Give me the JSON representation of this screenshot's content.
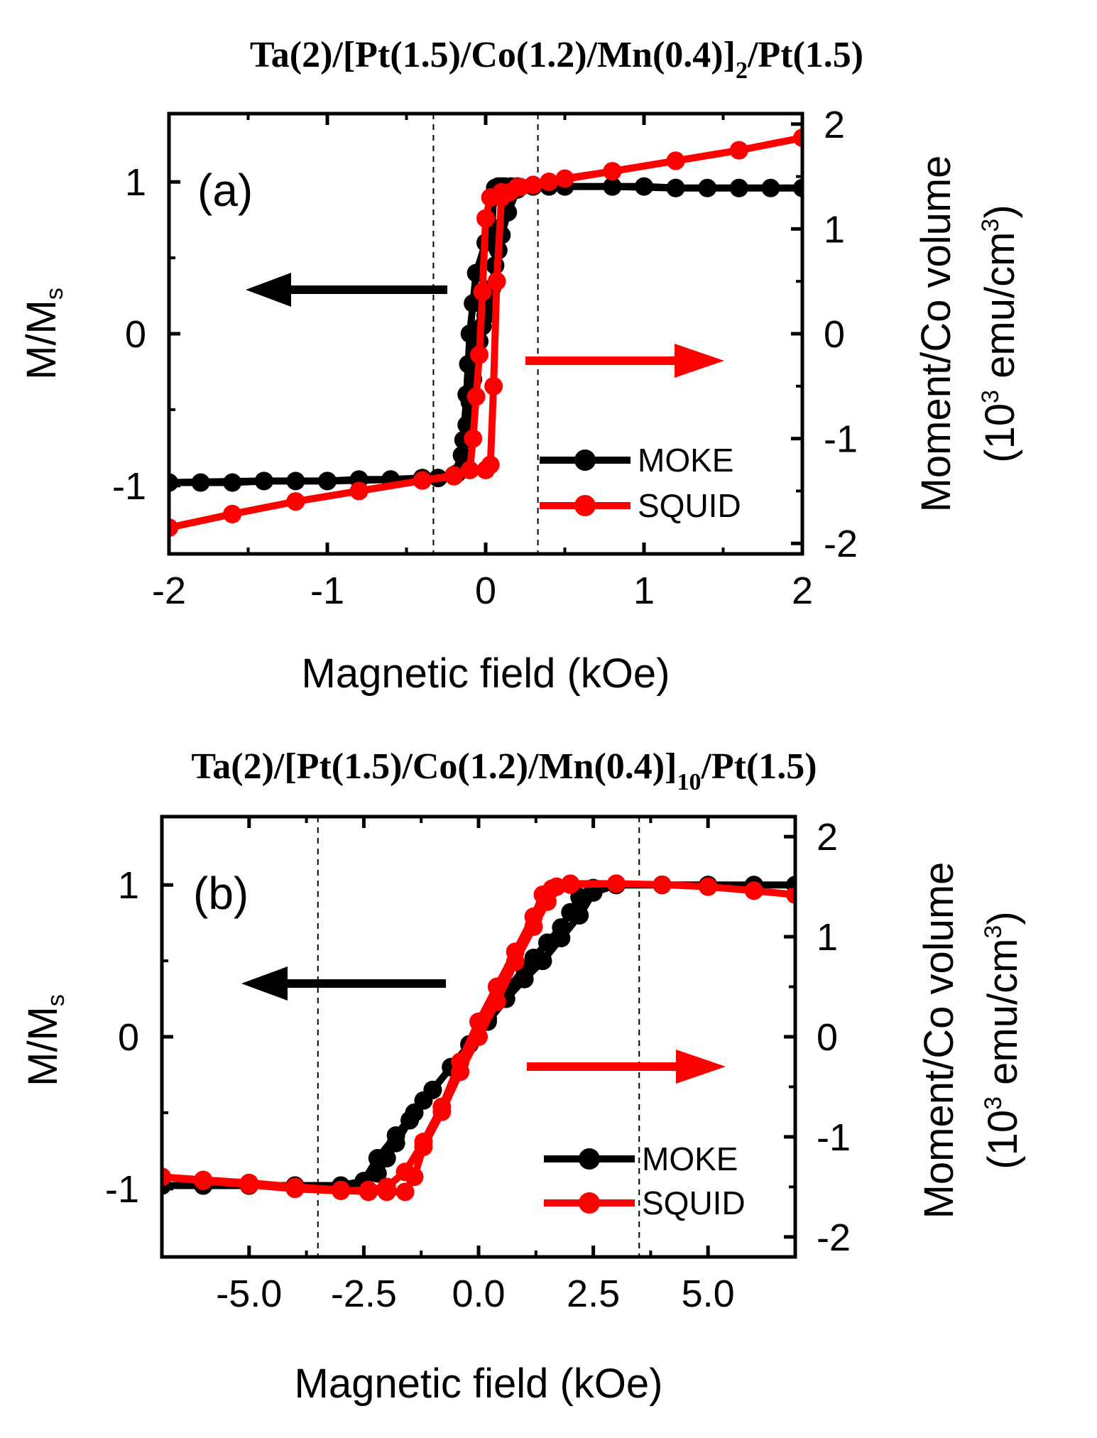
{
  "chart_data": [
    {
      "panel": "(a)",
      "type": "line",
      "title": {
        "main": "Ta(2)/[Pt(1.5)/Co(1.2)/Mn(0.4)]",
        "subscript": "2",
        "suffix": "/Pt(1.5)"
      },
      "xlabel": "Magnetic field (kOe)",
      "ylabel": {
        "main": "M/M",
        "sub": "s"
      },
      "y2label": {
        "line1": "Moment/Co volume",
        "line2_pre": "(10",
        "line2_sup1": "3",
        "line2_mid": " emu/cm",
        "line2_sup2": "3",
        "line2_post": ")"
      },
      "xlim": [
        -2,
        2
      ],
      "ylim": [
        -1.45,
        1.45
      ],
      "y2lim": [
        -2.1,
        2.1
      ],
      "xticks": [
        -2,
        -1,
        0,
        1,
        2
      ],
      "xtick_labels": [
        "-2",
        "-1",
        "0",
        "1",
        "2"
      ],
      "yticks": [
        -1,
        0,
        1
      ],
      "ytick_labels": [
        "-1",
        "0",
        "1"
      ],
      "y2ticks": [
        -2,
        -1,
        0,
        1,
        2
      ],
      "y2tick_labels": [
        "-2",
        "-1",
        "0",
        "1",
        "2"
      ],
      "vlines": [
        -0.33,
        0.33
      ],
      "arrows": [
        {
          "color": "#000000",
          "direction": "left",
          "axis": "left"
        },
        {
          "color": "#ff0000",
          "direction": "right",
          "axis": "right"
        }
      ],
      "legend": {
        "location": "lower-right",
        "entries": [
          "MOKE",
          "SQUID"
        ]
      },
      "series": [
        {
          "name": "MOKE",
          "color": "#000000",
          "axis": "left",
          "x": [
            -2.0,
            -1.8,
            -1.6,
            -1.4,
            -1.2,
            -1.0,
            -0.8,
            -0.6,
            -0.4,
            -0.3,
            -0.2,
            -0.15,
            -0.12,
            -0.1,
            -0.08,
            -0.06,
            -0.04,
            -0.02,
            0.0,
            0.02,
            0.04,
            0.06,
            0.08,
            0.1,
            0.14,
            0.2,
            0.3,
            0.5,
            0.8,
            1.0,
            1.2,
            1.4,
            1.6,
            1.8,
            2.0,
            1.6,
            1.2,
            0.8,
            0.4,
            0.2,
            0.16,
            0.12,
            0.1,
            0.08,
            0.06,
            0.05,
            0.04,
            0.0,
            -0.06,
            -0.08,
            -0.1,
            -0.11,
            -0.12,
            -0.14,
            -0.18,
            -0.3,
            -0.6,
            -1.0,
            -1.4,
            -2.0
          ],
          "y": [
            -0.98,
            -0.98,
            -0.98,
            -0.97,
            -0.97,
            -0.97,
            -0.96,
            -0.96,
            -0.95,
            -0.95,
            -0.93,
            -0.8,
            -0.6,
            -0.45,
            -0.3,
            -0.15,
            -0.05,
            0.05,
            0.12,
            0.2,
            0.3,
            0.45,
            0.55,
            0.65,
            0.8,
            0.95,
            0.97,
            0.97,
            0.97,
            0.97,
            0.96,
            0.96,
            0.96,
            0.96,
            0.96,
            0.96,
            0.96,
            0.97,
            0.97,
            0.97,
            0.97,
            0.97,
            0.97,
            0.97,
            0.96,
            0.9,
            0.7,
            0.6,
            0.4,
            0.2,
            0.0,
            -0.2,
            -0.4,
            -0.7,
            -0.92,
            -0.95,
            -0.96,
            -0.97,
            -0.97,
            -0.98
          ]
        },
        {
          "name": "SQUID",
          "color": "#ff0000",
          "axis": "right",
          "x": [
            -2.0,
            -1.6,
            -1.2,
            -0.8,
            -0.4,
            -0.2,
            0.0,
            0.03,
            0.05,
            0.07,
            0.1,
            0.15,
            0.22,
            0.3,
            0.5,
            0.8,
            1.2,
            1.6,
            2.0,
            1.6,
            1.2,
            0.8,
            0.4,
            0.2,
            0.1,
            0.03,
            0.0,
            -0.02,
            -0.04,
            -0.06,
            -0.08,
            -0.1,
            -0.2,
            -0.4,
            -0.8,
            -1.2,
            -1.6,
            -2.0
          ],
          "y": [
            -1.85,
            -1.72,
            -1.6,
            -1.5,
            -1.4,
            -1.35,
            -1.3,
            -1.25,
            -0.5,
            0.5,
            1.3,
            1.35,
            1.4,
            1.42,
            1.48,
            1.55,
            1.65,
            1.75,
            1.87,
            1.75,
            1.65,
            1.55,
            1.45,
            1.4,
            1.35,
            1.3,
            1.1,
            0.4,
            -0.2,
            -0.6,
            -1.0,
            -1.3,
            -1.36,
            -1.4,
            -1.5,
            -1.6,
            -1.72,
            -1.85
          ]
        }
      ]
    },
    {
      "panel": "(b)",
      "type": "line",
      "title": {
        "main": "Ta(2)/[Pt(1.5)/Co(1.2)/Mn(0.4)]",
        "subscript": "10",
        "suffix": "/Pt(1.5)"
      },
      "xlabel": "Magnetic field (kOe)",
      "ylabel": {
        "main": "M/M",
        "sub": "s"
      },
      "y2label": {
        "line1": "Moment/Co volume",
        "line2_pre": "(10",
        "line2_sup1": "3",
        "line2_mid": " emu/cm",
        "line2_sup2": "3",
        "line2_post": ")"
      },
      "xlim": [
        -6.9,
        6.9
      ],
      "ylim": [
        -1.45,
        1.45
      ],
      "y2lim": [
        -2.2,
        2.2
      ],
      "xticks": [
        -5.0,
        -2.5,
        0.0,
        2.5,
        5.0
      ],
      "xtick_labels": [
        "-5.0",
        "-2.5",
        "0.0",
        "2.5",
        "5.0"
      ],
      "yticks": [
        -1,
        0,
        1
      ],
      "ytick_labels": [
        "-1",
        "0",
        "1"
      ],
      "y2ticks": [
        -2,
        -1,
        0,
        1,
        2
      ],
      "y2tick_labels": [
        "-2",
        "-1",
        "0",
        "1",
        "2"
      ],
      "vlines": [
        -3.5,
        3.5
      ],
      "arrows": [
        {
          "color": "#000000",
          "direction": "left",
          "axis": "left"
        },
        {
          "color": "#ff0000",
          "direction": "right",
          "axis": "right"
        }
      ],
      "legend": {
        "location": "lower-right",
        "entries": [
          "MOKE",
          "SQUID"
        ]
      },
      "series": [
        {
          "name": "MOKE",
          "color": "#000000",
          "axis": "left",
          "x": [
            -6.9,
            -6.0,
            -5.0,
            -4.0,
            -3.0,
            -2.5,
            -2.2,
            -2.0,
            -1.8,
            -1.5,
            -1.2,
            -1.0,
            -0.6,
            -0.2,
            0.2,
            0.6,
            1.0,
            1.4,
            1.8,
            2.2,
            2.5,
            3.0,
            4.0,
            5.0,
            6.0,
            6.9,
            6.0,
            5.0,
            4.0,
            3.0,
            2.5,
            2.2,
            2.0,
            1.8,
            1.5,
            1.2,
            1.0,
            0.6,
            0.2,
            -0.2,
            -0.6,
            -1.0,
            -1.4,
            -1.8,
            -2.2,
            -2.5,
            -3.0,
            -4.0,
            -5.0,
            -6.0,
            -6.9
          ],
          "y": [
            -0.98,
            -0.98,
            -0.98,
            -0.98,
            -0.98,
            -0.97,
            -0.9,
            -0.8,
            -0.7,
            -0.55,
            -0.42,
            -0.35,
            -0.2,
            -0.05,
            0.1,
            0.25,
            0.38,
            0.5,
            0.65,
            0.8,
            0.95,
            1.0,
            1.0,
            1.0,
            1.0,
            1.0,
            1.0,
            1.0,
            1.0,
            1.0,
            0.98,
            0.92,
            0.82,
            0.72,
            0.62,
            0.52,
            0.45,
            0.3,
            0.12,
            -0.05,
            -0.2,
            -0.35,
            -0.5,
            -0.65,
            -0.8,
            -0.95,
            -0.98,
            -0.98,
            -0.98,
            -0.98,
            -0.98
          ]
        },
        {
          "name": "SQUID",
          "color": "#ff0000",
          "axis": "right",
          "x": [
            -6.9,
            -6.0,
            -5.0,
            -4.0,
            -3.0,
            -2.4,
            -2.0,
            -1.6,
            -1.4,
            -1.2,
            -0.8,
            -0.4,
            0.0,
            0.4,
            0.8,
            1.2,
            1.5,
            1.7,
            2.0,
            3.0,
            4.0,
            5.0,
            6.0,
            6.9,
            6.0,
            5.0,
            4.0,
            3.0,
            2.0,
            1.6,
            1.4,
            1.2,
            0.8,
            0.4,
            0.0,
            -0.4,
            -0.8,
            -1.2,
            -1.6,
            -2.0,
            -2.4,
            -3.0,
            -4.0,
            -5.0,
            -6.0,
            -6.9
          ],
          "y": [
            -1.4,
            -1.43,
            -1.46,
            -1.5,
            -1.53,
            -1.55,
            -1.55,
            -1.55,
            -1.4,
            -1.1,
            -0.75,
            -0.35,
            0.0,
            0.35,
            0.75,
            1.1,
            1.35,
            1.5,
            1.53,
            1.53,
            1.52,
            1.5,
            1.46,
            1.42,
            1.46,
            1.5,
            1.52,
            1.53,
            1.52,
            1.48,
            1.42,
            1.2,
            0.85,
            0.5,
            0.15,
            -0.25,
            -0.7,
            -1.05,
            -1.35,
            -1.5,
            -1.53,
            -1.54,
            -1.52,
            -1.48,
            -1.44,
            -1.4
          ]
        }
      ]
    }
  ]
}
